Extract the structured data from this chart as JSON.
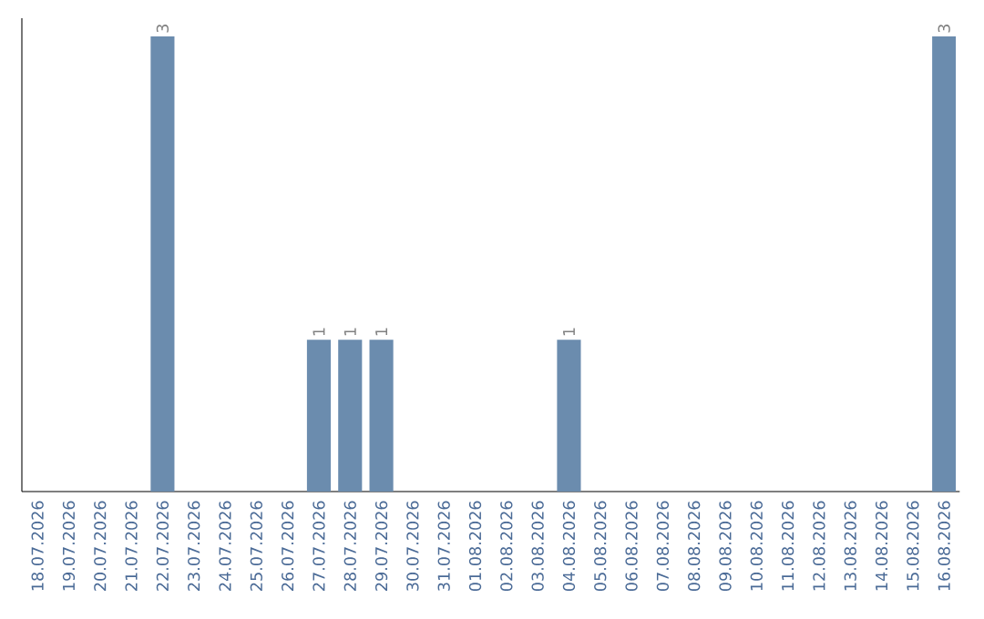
{
  "chart_data": {
    "type": "bar",
    "categories": [
      "18.07.2026",
      "19.07.2026",
      "20.07.2026",
      "21.07.2026",
      "22.07.2026",
      "23.07.2026",
      "24.07.2026",
      "25.07.2026",
      "26.07.2026",
      "27.07.2026",
      "28.07.2026",
      "29.07.2026",
      "30.07.2026",
      "31.07.2026",
      "01.08.2026",
      "02.08.2026",
      "03.08.2026",
      "04.08.2026",
      "05.08.2026",
      "06.08.2026",
      "07.08.2026",
      "08.08.2026",
      "09.08.2026",
      "10.08.2026",
      "11.08.2026",
      "12.08.2026",
      "13.08.2026",
      "14.08.2026",
      "15.08.2026",
      "16.08.2026"
    ],
    "values": [
      0,
      0,
      0,
      0,
      3,
      0,
      0,
      0,
      0,
      1,
      1,
      1,
      0,
      0,
      0,
      0,
      0,
      1,
      0,
      0,
      0,
      0,
      0,
      0,
      0,
      0,
      0,
      0,
      0,
      3
    ],
    "value_labels": [
      null,
      null,
      null,
      null,
      "3",
      null,
      null,
      null,
      null,
      "1",
      "1",
      "1",
      null,
      null,
      null,
      null,
      null,
      "1",
      null,
      null,
      null,
      null,
      null,
      null,
      null,
      null,
      null,
      null,
      null,
      "3"
    ],
    "color": "#6b8cae",
    "tick_labels": "x"
  }
}
